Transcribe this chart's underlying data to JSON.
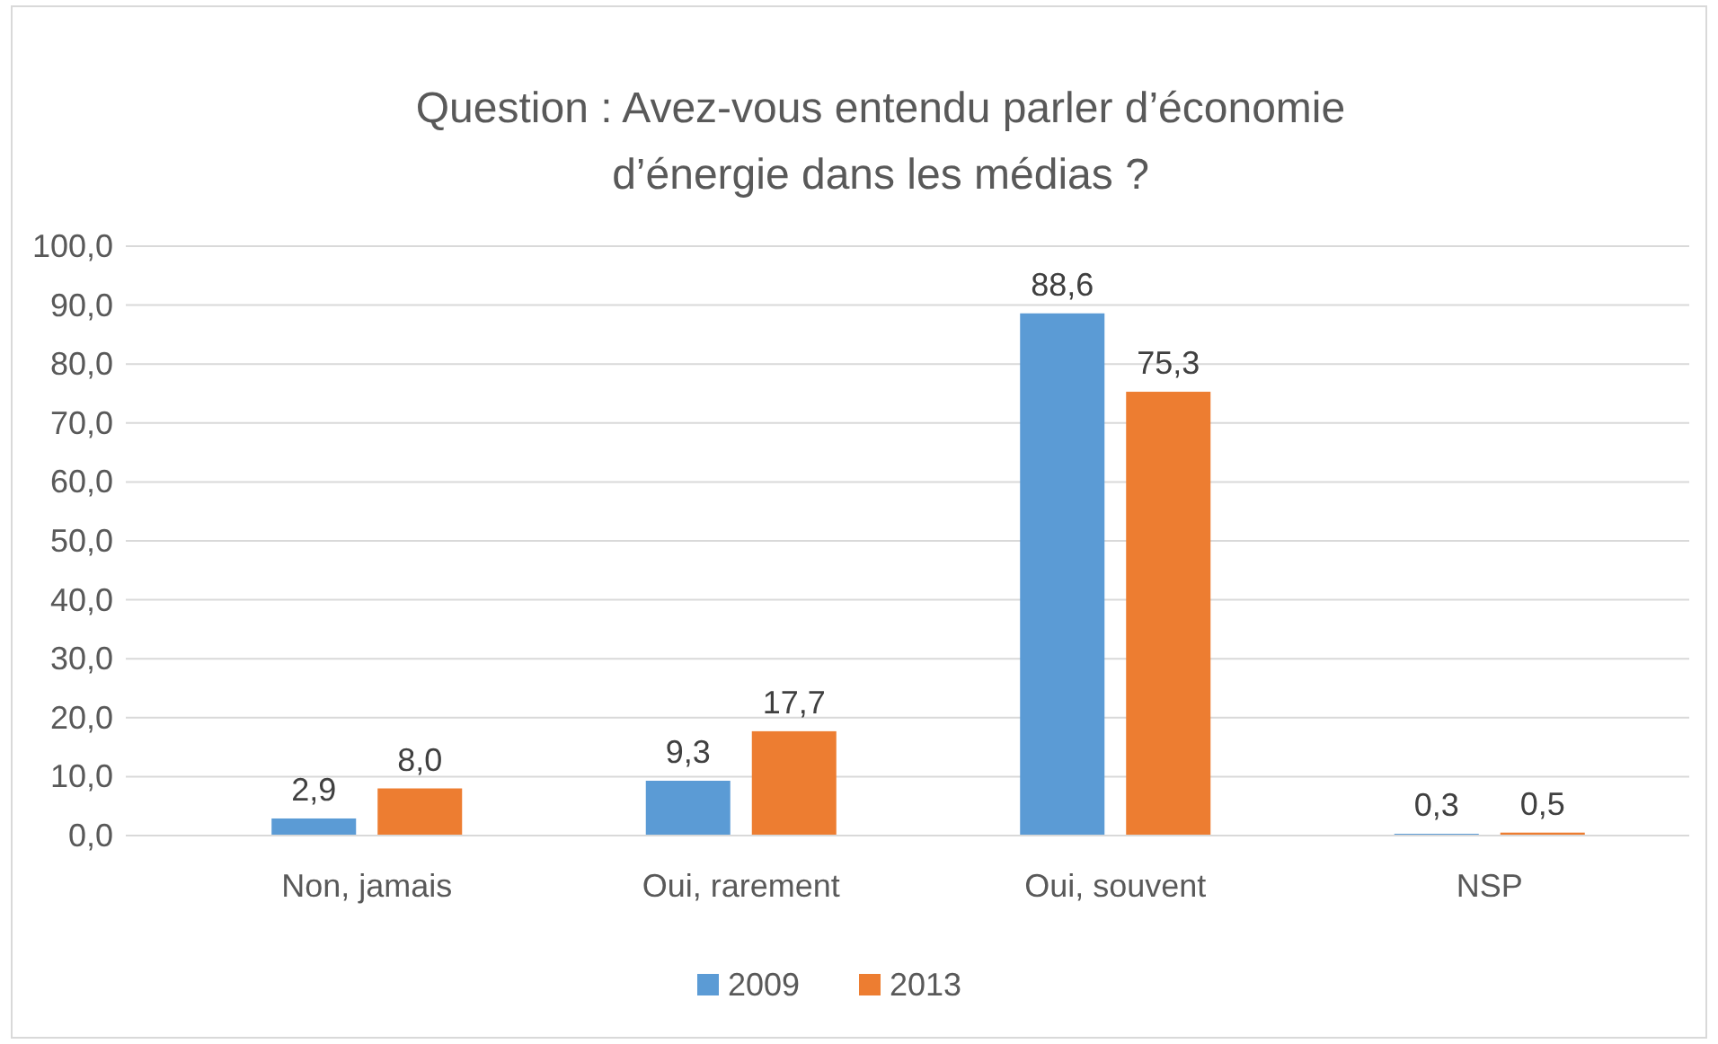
{
  "chart_data": {
    "type": "bar",
    "title": "Question : Avez-vous entendu parler d’économie d’énergie dans les médias ?",
    "categories": [
      "Non, jamais",
      "Oui, rarement",
      "Oui, souvent",
      "NSP"
    ],
    "series": [
      {
        "name": "2009",
        "color": "#5b9bd5",
        "values": [
          2.9,
          9.3,
          88.6,
          0.3
        ],
        "value_labels": [
          "2,9",
          "9,3",
          "88,6",
          "0,3"
        ]
      },
      {
        "name": "2013",
        "color": "#ed7d31",
        "values": [
          8.0,
          17.7,
          75.3,
          0.5
        ],
        "value_labels": [
          "8,0",
          "17,7",
          "75,3",
          "0,5"
        ]
      }
    ],
    "ylim": [
      0,
      100
    ],
    "yticks": [
      {
        "value": 0,
        "label": "0,0"
      },
      {
        "value": 10,
        "label": "10,0"
      },
      {
        "value": 20,
        "label": "20,0"
      },
      {
        "value": 30,
        "label": "30,0"
      },
      {
        "value": 40,
        "label": "40,0"
      },
      {
        "value": 50,
        "label": "50,0"
      },
      {
        "value": 60,
        "label": "60,0"
      },
      {
        "value": 70,
        "label": "70,0"
      },
      {
        "value": 80,
        "label": "80,0"
      },
      {
        "value": 90,
        "label": "90,0"
      },
      {
        "value": 100,
        "label": "100,0"
      }
    ],
    "grid": "y",
    "legend": "bottom"
  }
}
